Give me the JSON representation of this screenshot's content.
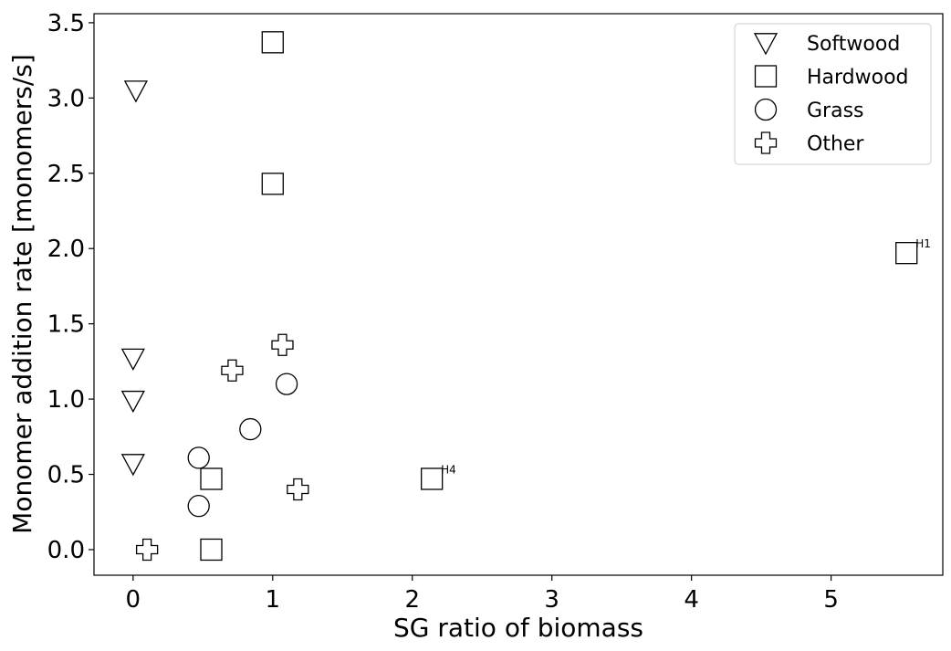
{
  "chart_data": {
    "type": "scatter",
    "xlabel": "SG ratio of biomass",
    "ylabel": "Monomer addition rate [monomers/s]",
    "xlim": [
      -0.28,
      5.8
    ],
    "ylim": [
      -0.17,
      3.56
    ],
    "xticks": [
      0,
      1,
      2,
      3,
      4,
      5
    ],
    "xtick_labels": [
      "0",
      "1",
      "2",
      "3",
      "4",
      "5"
    ],
    "yticks": [
      0.0,
      0.5,
      1.0,
      1.5,
      2.0,
      2.5,
      3.0,
      3.5
    ],
    "ytick_labels": [
      "0.0",
      "0.5",
      "1.0",
      "1.5",
      "2.0",
      "2.5",
      "3.0",
      "3.5"
    ],
    "grid": false,
    "legend_position": "top-right",
    "series": [
      {
        "name": "Softwood",
        "marker": "triangle-down",
        "points": [
          [
            0.02,
            3.05
          ],
          [
            0.0,
            1.27
          ],
          [
            0.0,
            0.99
          ],
          [
            0.0,
            0.57
          ]
        ]
      },
      {
        "name": "Hardwood",
        "marker": "square",
        "points": [
          [
            1.0,
            3.37
          ],
          [
            1.0,
            2.43
          ],
          [
            5.54,
            1.97
          ],
          [
            2.14,
            0.47
          ],
          [
            0.56,
            0.47
          ],
          [
            0.56,
            0.0
          ]
        ]
      },
      {
        "name": "Grass",
        "marker": "circle",
        "points": [
          [
            1.1,
            1.1
          ],
          [
            0.84,
            0.8
          ],
          [
            0.47,
            0.61
          ],
          [
            0.47,
            0.29
          ]
        ]
      },
      {
        "name": "Other",
        "marker": "plus",
        "points": [
          [
            1.07,
            1.36
          ],
          [
            0.71,
            1.19
          ],
          [
            1.18,
            0.4
          ],
          [
            0.1,
            0.0
          ]
        ]
      }
    ],
    "annotations": [
      {
        "text": "H1",
        "x": 5.54,
        "y": 1.97
      },
      {
        "text": "H4",
        "x": 2.14,
        "y": 0.47
      }
    ]
  },
  "colors": {
    "marker_fill": "#ffffff",
    "marker_stroke": "#000000",
    "axis": "#000000"
  }
}
